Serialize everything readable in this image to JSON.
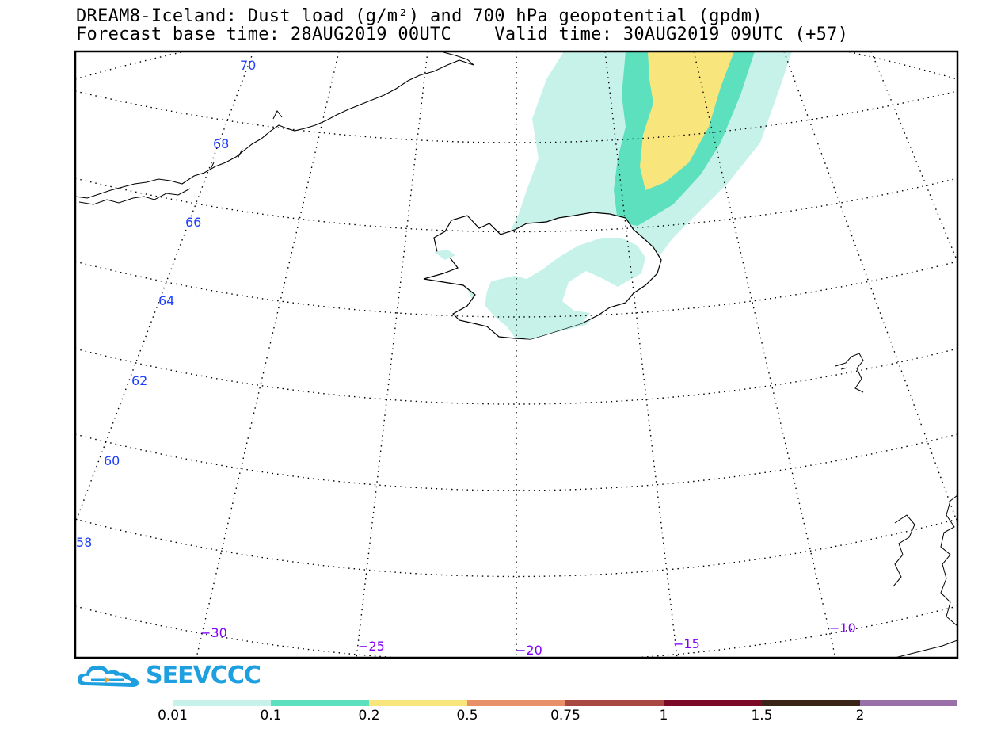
{
  "title": {
    "line1": "DREAM8-Iceland: Dust load (g/m²) and 700 hPa geopotential (gpdm)",
    "line2_left": "Forecast base time: 28AUG2019 00UTC",
    "line2_right": "Valid time: 30AUG2019 09UTC (+57)"
  },
  "map": {
    "lat_labels": [
      "70",
      "68",
      "66",
      "64",
      "62",
      "60",
      "58"
    ],
    "lon_labels": [
      "−30",
      "−25",
      "−20",
      "−15",
      "−10"
    ],
    "lat_label_color": "#2040ff",
    "lon_label_color": "#8000ff"
  },
  "legend": {
    "ticks": [
      "0.01",
      "0.1",
      "0.2",
      "0.5",
      "0.75",
      "1",
      "1.5",
      "2"
    ],
    "colors": [
      "#c6f2ea",
      "#5ce0bd",
      "#f8e67c",
      "#e89068",
      "#a84840",
      "#7a0a28",
      "#3a2418",
      "#9a70a8"
    ]
  },
  "logo": {
    "text": "SEEVCCC",
    "color": "#1ea0e0"
  }
}
